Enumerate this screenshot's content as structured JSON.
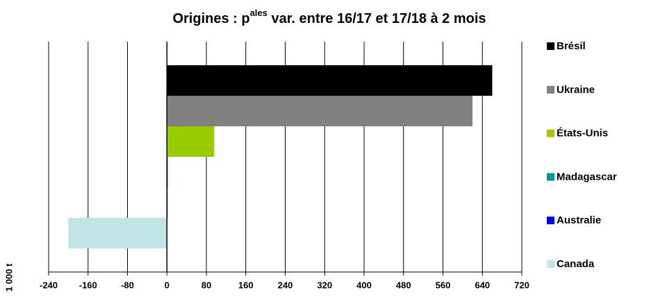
{
  "chart_data": {
    "type": "bar",
    "orientation": "horizontal",
    "title": [
      "Origines : p",
      "ales",
      " var. entre 16/17 et 17/18 à 2 mois"
    ],
    "y_label": "1 000 t",
    "series": [
      {
        "name": "Brésil",
        "color": "#000000",
        "values": [
          660
        ]
      },
      {
        "name": "Ukraine",
        "color": "#808080",
        "values": [
          620
        ]
      },
      {
        "name": "États-Unis",
        "color": "#99cc00",
        "values": [
          96
        ]
      },
      {
        "name": "Madagascar",
        "color": "#009999",
        "values": [
          2
        ]
      },
      {
        "name": "Australie",
        "color": "#0000ff",
        "values": [
          1
        ]
      },
      {
        "name": "Canada",
        "color": "#c0e4e8",
        "values": [
          -200
        ]
      }
    ],
    "xlim": [
      -240,
      720
    ],
    "xticks": [
      -240,
      -160,
      -80,
      0,
      80,
      160,
      240,
      320,
      400,
      480,
      560,
      640,
      720
    ],
    "grid": true,
    "legend": "right"
  }
}
